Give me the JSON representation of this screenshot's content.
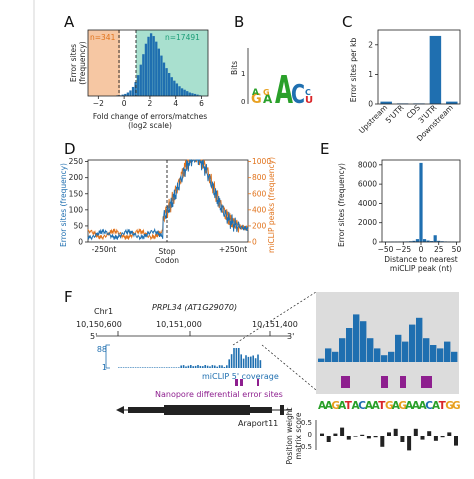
{
  "panels": {
    "A": {
      "letter": "A",
      "ylabel": "Error sites (frequency)",
      "xlabel": "Fold change of errors/matches (log2 scale)",
      "left_count": "n=341",
      "right_count": "n=17491",
      "xticks": [
        "−2",
        "0",
        "2",
        "4",
        "6"
      ]
    },
    "B": {
      "letter": "B",
      "ylabel": "Bits",
      "motif": [
        "G",
        "A",
        "A",
        "C",
        "U"
      ],
      "motif_alt": [
        "A",
        "G",
        "G",
        "A",
        "C"
      ],
      "yticks": [
        "0",
        "1"
      ]
    },
    "C": {
      "letter": "C",
      "ylabel": "Error sites per kb",
      "categories": [
        "Upstream",
        "5'UTR",
        "CDS",
        "3'UTR",
        "Downstream"
      ],
      "yticks": [
        "0",
        "1",
        "2"
      ]
    },
    "D": {
      "letter": "D",
      "ylabel_left": "Error sites (frequency)",
      "ylabel_right": "miCLIP peaks (frequency)",
      "xlabel_top": "Stop",
      "xlabel_bottom": "Codon",
      "xticks": [
        "-250nt",
        "+250nt"
      ],
      "yticks_left": [
        "0",
        "50",
        "100",
        "150",
        "200",
        "250"
      ],
      "yticks_right": [
        "0",
        "200",
        "400",
        "600",
        "800",
        "1000"
      ]
    },
    "E": {
      "letter": "E",
      "ylabel": "Error sites (frequency)",
      "xlabel": "Distance to nearest miCLIP peak (nt)",
      "xticks": [
        "−50",
        "−25",
        "0",
        "25",
        "50"
      ],
      "yticks": [
        "0",
        "2000",
        "4000",
        "6000",
        "8000"
      ]
    },
    "F": {
      "letter": "F",
      "gene": "PRPL34 (AT1G29070)",
      "chrom": "Chr1",
      "coords": [
        "10,150,600",
        "10,151,000",
        "10,151,400"
      ],
      "five_prime": "5'",
      "three_prime": "3'",
      "coverage_max": "88",
      "coverage_min": "1",
      "coverage_label": "miCLIP 5' coverage",
      "error_label": "Nanopore differential error sites",
      "annotation": "Araport11",
      "pwm_ylabel": "Position weight matrix score",
      "pwm_yticks": [
        "0.5",
        "0",
        "-0.5"
      ],
      "sequence": "AAGATACAATGAGAAACATGG"
    }
  },
  "colors": {
    "blue": "#1f6fb0",
    "orange": "#e1731c",
    "purple": "#8e1f8f",
    "peach": "#f6c7a3",
    "mint": "#a9e0cf",
    "gray_bg": "#dcdcdc"
  },
  "chart_data": [
    {
      "type": "bar",
      "title": "",
      "xlabel": "Fold change of errors/matches (log2 scale)",
      "ylabel": "Error sites (frequency)",
      "x": [
        -2.5,
        -2.3,
        -2.1,
        -1.9,
        -1.7,
        -1.5,
        -1.3,
        -1.1,
        -0.9,
        -0.7,
        -0.5,
        -0.3,
        -0.1,
        0.1,
        0.3,
        0.5,
        0.7,
        0.9,
        1.1,
        1.3,
        1.5,
        1.7,
        1.9,
        2.1,
        2.3,
        2.5,
        2.7,
        2.9,
        3.1,
        3.3,
        3.5,
        3.7,
        3.9,
        4.1,
        4.3,
        4.5,
        4.7,
        4.9,
        5.1,
        5.3,
        5.5,
        5.7,
        5.9
      ],
      "values": [
        0,
        0,
        0,
        0,
        0,
        0,
        0,
        0,
        0,
        0,
        1,
        1,
        2,
        3,
        5,
        8,
        13,
        20,
        30,
        45,
        60,
        75,
        85,
        90,
        86,
        78,
        68,
        58,
        48,
        40,
        33,
        27,
        22,
        18,
        14,
        11,
        9,
        7,
        5,
        4,
        3,
        2,
        1
      ],
      "xlim": [
        -2.8,
        6.5
      ],
      "annotations": [
        "n=341",
        "n=17491"
      ]
    },
    {
      "type": "bar",
      "title": "",
      "ylabel": "Error sites per kb",
      "categories": [
        "Upstream",
        "5'UTR",
        "CDS",
        "3'UTR",
        "Downstream"
      ],
      "values": [
        0.08,
        0.02,
        0.02,
        2.3,
        0.08
      ],
      "ylim": [
        0,
        2.5
      ]
    },
    {
      "type": "line",
      "xlabel": "Stop Codon",
      "series": [
        {
          "name": "Error sites",
          "axis": "left"
        },
        {
          "name": "miCLIP peaks",
          "axis": "right"
        }
      ],
      "ylim_left": [
        0,
        250
      ],
      "ylim_right": [
        0,
        1000
      ]
    },
    {
      "type": "bar",
      "xlabel": "Distance to nearest miCLIP peak (nt)",
      "ylabel": "Error sites (frequency)",
      "x": [
        -50,
        -45,
        -40,
        -35,
        -30,
        -25,
        -20,
        -15,
        -10,
        -5,
        0,
        5,
        10,
        15,
        20,
        25,
        30,
        35,
        40,
        45,
        50
      ],
      "values": [
        40,
        40,
        45,
        45,
        50,
        55,
        60,
        80,
        120,
        300,
        8200,
        300,
        150,
        100,
        700,
        120,
        80,
        60,
        50,
        45,
        40
      ],
      "ylim": [
        0,
        8500
      ]
    }
  ]
}
